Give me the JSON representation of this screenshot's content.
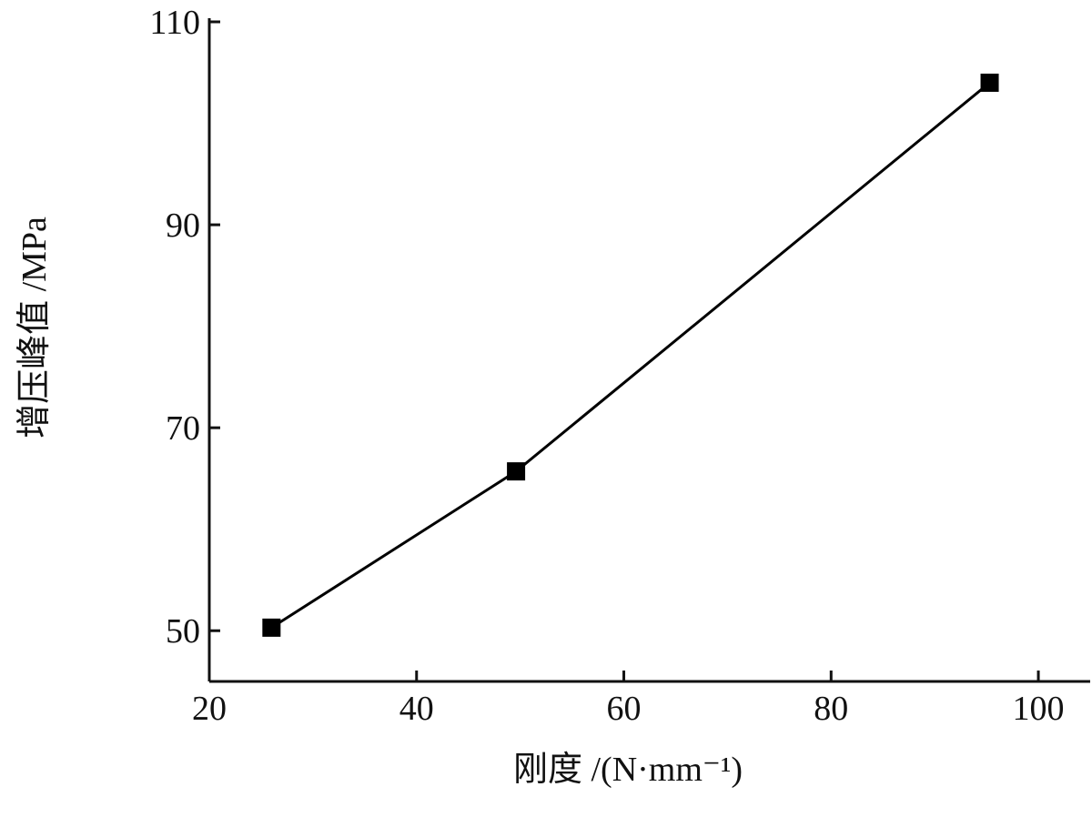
{
  "chart_data": {
    "type": "line",
    "x_label": "刚度 /(N·mm⁻¹)",
    "y_label": "增压峰值 /MPa",
    "x": [
      26,
      49.6,
      95.3
    ],
    "series": [
      {
        "color": "#000000",
        "values": [
          50.3,
          65.7,
          104.0
        ]
      }
    ],
    "xlim": [
      20,
      105
    ],
    "xticks": [
      20,
      40,
      60,
      80,
      100
    ],
    "ylim": [
      45,
      110
    ],
    "yticks": [
      50,
      70,
      90,
      110
    ],
    "grid": false
  }
}
